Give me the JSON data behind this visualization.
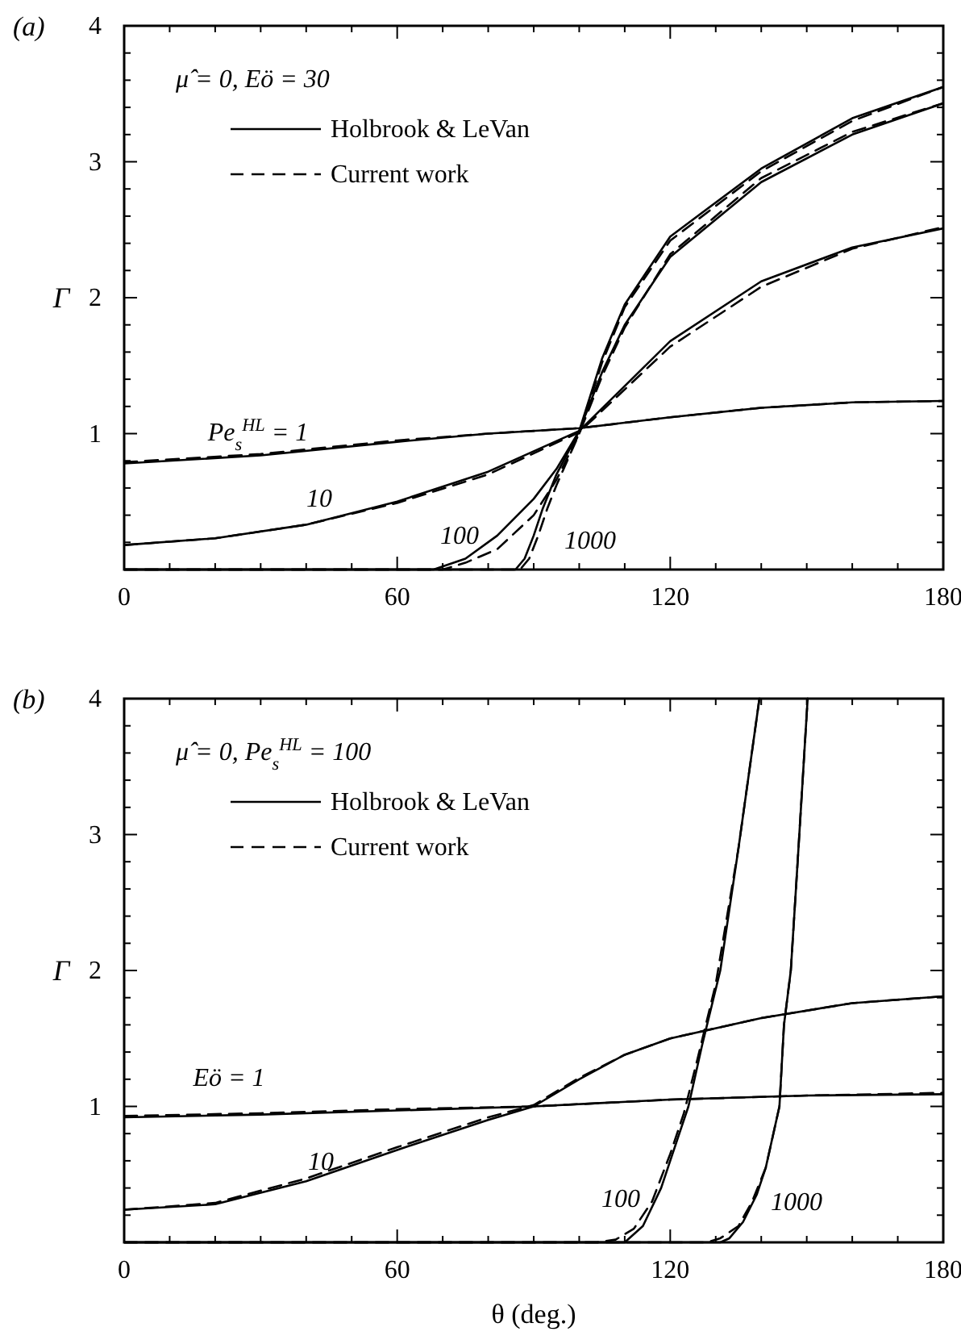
{
  "chart_data": [
    {
      "type": "line",
      "title": "(a)",
      "ylabel": "Γ",
      "legend_title": "μ̂ = 0, Eö = 30",
      "legend": "top left",
      "xlim": [
        0,
        180
      ],
      "ylim": [
        0,
        4
      ],
      "xticks": [
        0,
        {
          "value": 10,
          "label": null
        },
        {
          "value": 20,
          "label": null
        },
        {
          "value": 30,
          "label": null
        },
        {
          "value": 40,
          "label": null
        },
        {
          "value": 50,
          "label": null
        },
        60,
        {
          "value": 70,
          "label": null
        },
        {
          "value": 80,
          "label": null
        },
        {
          "value": 90,
          "label": null
        },
        {
          "value": 100,
          "label": null
        },
        {
          "value": 110,
          "label": null
        },
        120,
        {
          "value": 130,
          "label": null
        },
        {
          "value": 140,
          "label": null
        },
        {
          "value": 150,
          "label": null
        },
        {
          "value": 160,
          "label": null
        },
        {
          "value": 170,
          "label": null
        },
        180
      ],
      "yticks": [
        {
          "value": 0,
          "label": null
        },
        {
          "value": 0.2,
          "label": null
        },
        {
          "value": 0.4,
          "label": null
        },
        {
          "value": 0.6,
          "label": null
        },
        {
          "value": 0.8,
          "label": null
        },
        1,
        {
          "value": 1.2,
          "label": null
        },
        {
          "value": 1.4,
          "label": null
        },
        {
          "value": 1.6,
          "label": null
        },
        {
          "value": 1.8,
          "label": null
        },
        2,
        {
          "value": 2.2,
          "label": null
        },
        {
          "value": 2.4,
          "label": null
        },
        {
          "value": 2.6,
          "label": null
        },
        {
          "value": 2.8,
          "label": null
        },
        3,
        {
          "value": 3.2,
          "label": null
        },
        {
          "value": 3.4,
          "label": null
        },
        {
          "value": 3.6,
          "label": null
        },
        {
          "value": 3.8,
          "label": null
        },
        4
      ],
      "annotations": [
        "Pe$_{s}$$^{HL}$ = 1",
        "10",
        "100",
        "1000"
      ],
      "series": [
        {
          "name": "Holbrook & LeVan",
          "color": "#000000",
          "line_style": "solid",
          "x": [
            0,
            30,
            60,
            80,
            100,
            120,
            140,
            160,
            180
          ],
          "values": [
            0.78,
            0.84,
            0.94,
            1.0,
            1.04,
            1.12,
            1.19,
            1.23,
            1.24
          ]
        },
        {
          "color": "#000000",
          "line_style": "solid",
          "x": [
            0,
            20,
            40,
            60,
            80,
            100,
            120,
            140,
            160,
            180
          ],
          "values": [
            0.18,
            0.23,
            0.33,
            0.5,
            0.72,
            1.02,
            1.68,
            2.12,
            2.37,
            2.51
          ]
        },
        {
          "color": "#000000",
          "line_style": "solid",
          "x": [
            0,
            60,
            68,
            75,
            82,
            90,
            95,
            100,
            105,
            110,
            120,
            140,
            160,
            180
          ],
          "values": [
            0,
            0,
            0,
            0.08,
            0.25,
            0.52,
            0.74,
            1.02,
            1.45,
            1.8,
            2.3,
            2.85,
            3.2,
            3.43
          ]
        },
        {
          "color": "#000000",
          "line_style": "solid",
          "x": [
            0,
            86,
            88,
            90,
            92,
            95,
            100,
            105,
            110,
            120,
            140,
            160,
            180
          ],
          "values": [
            0,
            0,
            0.08,
            0.25,
            0.45,
            0.7,
            1.02,
            1.55,
            1.95,
            2.45,
            2.95,
            3.32,
            3.55
          ]
        },
        {
          "name": "Current work",
          "color": "#000000",
          "line_style": "dashed",
          "x": [
            0,
            30,
            60,
            80,
            100,
            120,
            140,
            160,
            180
          ],
          "values": [
            0.79,
            0.85,
            0.95,
            1.0,
            1.04,
            1.12,
            1.19,
            1.23,
            1.24
          ]
        },
        {
          "color": "#000000",
          "line_style": "dashed",
          "x": [
            0,
            20,
            40,
            60,
            80,
            100,
            120,
            140,
            160,
            180
          ],
          "values": [
            0.18,
            0.23,
            0.33,
            0.49,
            0.7,
            1.01,
            1.64,
            2.08,
            2.36,
            2.52
          ]
        },
        {
          "color": "#000000",
          "line_style": "dashed",
          "x": [
            0,
            60,
            70,
            75,
            82,
            90,
            95,
            100,
            105,
            110,
            120,
            140,
            160,
            180
          ],
          "values": [
            0,
            0,
            0,
            0.05,
            0.15,
            0.4,
            0.66,
            1.0,
            1.42,
            1.78,
            2.32,
            2.88,
            3.22,
            3.43
          ]
        },
        {
          "color": "#000000",
          "line_style": "dashed",
          "x": [
            0,
            87,
            89,
            91,
            93,
            95,
            100,
            105,
            110,
            120,
            140,
            160,
            180
          ],
          "values": [
            0,
            0,
            0.08,
            0.25,
            0.45,
            0.62,
            1.0,
            1.52,
            1.93,
            2.42,
            2.93,
            3.3,
            3.55
          ]
        }
      ]
    },
    {
      "type": "line",
      "title": "(b)",
      "xlabel": "θ (deg.)",
      "ylabel": "Γ",
      "legend_title": "μ̂ = 0, Pe$_{s}$$^{HL}$ = 100",
      "legend": "top left",
      "xlim": [
        0,
        180
      ],
      "ylim": [
        0,
        4
      ],
      "xticks": [
        0,
        {
          "value": 10,
          "label": null
        },
        {
          "value": 20,
          "label": null
        },
        {
          "value": 30,
          "label": null
        },
        {
          "value": 40,
          "label": null
        },
        {
          "value": 50,
          "label": null
        },
        60,
        {
          "value": 70,
          "label": null
        },
        {
          "value": 80,
          "label": null
        },
        {
          "value": 90,
          "label": null
        },
        {
          "value": 100,
          "label": null
        },
        {
          "value": 110,
          "label": null
        },
        120,
        {
          "value": 130,
          "label": null
        },
        {
          "value": 140,
          "label": null
        },
        {
          "value": 150,
          "label": null
        },
        {
          "value": 160,
          "label": null
        },
        {
          "value": 170,
          "label": null
        },
        180
      ],
      "yticks": [
        {
          "value": 0,
          "label": null
        },
        {
          "value": 0.2,
          "label": null
        },
        {
          "value": 0.4,
          "label": null
        },
        {
          "value": 0.6,
          "label": null
        },
        {
          "value": 0.8,
          "label": null
        },
        1,
        {
          "value": 1.2,
          "label": null
        },
        {
          "value": 1.4,
          "label": null
        },
        {
          "value": 1.6,
          "label": null
        },
        {
          "value": 1.8,
          "label": null
        },
        2,
        {
          "value": 2.2,
          "label": null
        },
        {
          "value": 2.4,
          "label": null
        },
        {
          "value": 2.6,
          "label": null
        },
        {
          "value": 2.8,
          "label": null
        },
        3,
        {
          "value": 3.2,
          "label": null
        },
        {
          "value": 3.4,
          "label": null
        },
        {
          "value": 3.6,
          "label": null
        },
        {
          "value": 3.8,
          "label": null
        },
        4
      ],
      "annotations": [
        "Eö = 1",
        "10",
        "100",
        "1000"
      ],
      "series": [
        {
          "name": "Holbrook & LeVan",
          "color": "#000000",
          "line_style": "solid",
          "x": [
            0,
            30,
            60,
            90,
            120,
            150,
            180
          ],
          "values": [
            0.92,
            0.94,
            0.97,
            1.0,
            1.05,
            1.08,
            1.09
          ]
        },
        {
          "color": "#000000",
          "line_style": "solid",
          "x": [
            0,
            20,
            40,
            60,
            80,
            90,
            100,
            110,
            120,
            140,
            160,
            180
          ],
          "values": [
            0.24,
            0.28,
            0.45,
            0.68,
            0.9,
            1.0,
            1.2,
            1.38,
            1.5,
            1.65,
            1.76,
            1.81
          ]
        },
        {
          "color": "#000000",
          "line_style": "solid",
          "x": [
            0,
            105,
            110,
            114,
            118,
            122,
            124,
            127,
            131,
            135,
            139.6
          ],
          "values": [
            0,
            0,
            0,
            0.12,
            0.4,
            0.8,
            1.0,
            1.45,
            2.0,
            2.9,
            4
          ]
        },
        {
          "color": "#000000",
          "line_style": "solid",
          "x": [
            0,
            131,
            133,
            136,
            139,
            141,
            143,
            144,
            145,
            146.5,
            148,
            150.2
          ],
          "values": [
            0,
            0,
            0.03,
            0.15,
            0.35,
            0.55,
            0.85,
            1.0,
            1.6,
            2.0,
            2.8,
            4
          ]
        },
        {
          "name": "Current work",
          "color": "#000000",
          "line_style": "dashed",
          "x": [
            0,
            30,
            60,
            90,
            120,
            150,
            180
          ],
          "values": [
            0.93,
            0.95,
            0.98,
            1.0,
            1.05,
            1.08,
            1.1
          ]
        },
        {
          "color": "#000000",
          "line_style": "dashed",
          "x": [
            0,
            20,
            40,
            60,
            80,
            90,
            100,
            110,
            120,
            140,
            160,
            180
          ],
          "values": [
            0.24,
            0.29,
            0.47,
            0.7,
            0.92,
            1.01,
            1.21,
            1.38,
            1.5,
            1.65,
            1.76,
            1.81
          ]
        },
        {
          "color": "#000000",
          "line_style": "dashed",
          "x": [
            0,
            104,
            108,
            112,
            116,
            120,
            123,
            126,
            130,
            135,
            139.6
          ],
          "values": [
            0,
            0,
            0.02,
            0.1,
            0.3,
            0.65,
            0.95,
            1.35,
            1.9,
            2.9,
            4
          ]
        },
        {
          "color": "#000000",
          "line_style": "dashed",
          "x": [
            0,
            128,
            131,
            135,
            138,
            141,
            143,
            144,
            145,
            146.5,
            148,
            150.2
          ],
          "values": [
            0,
            0,
            0.03,
            0.12,
            0.3,
            0.55,
            0.85,
            1.0,
            1.6,
            2.0,
            2.8,
            4
          ]
        }
      ]
    }
  ]
}
